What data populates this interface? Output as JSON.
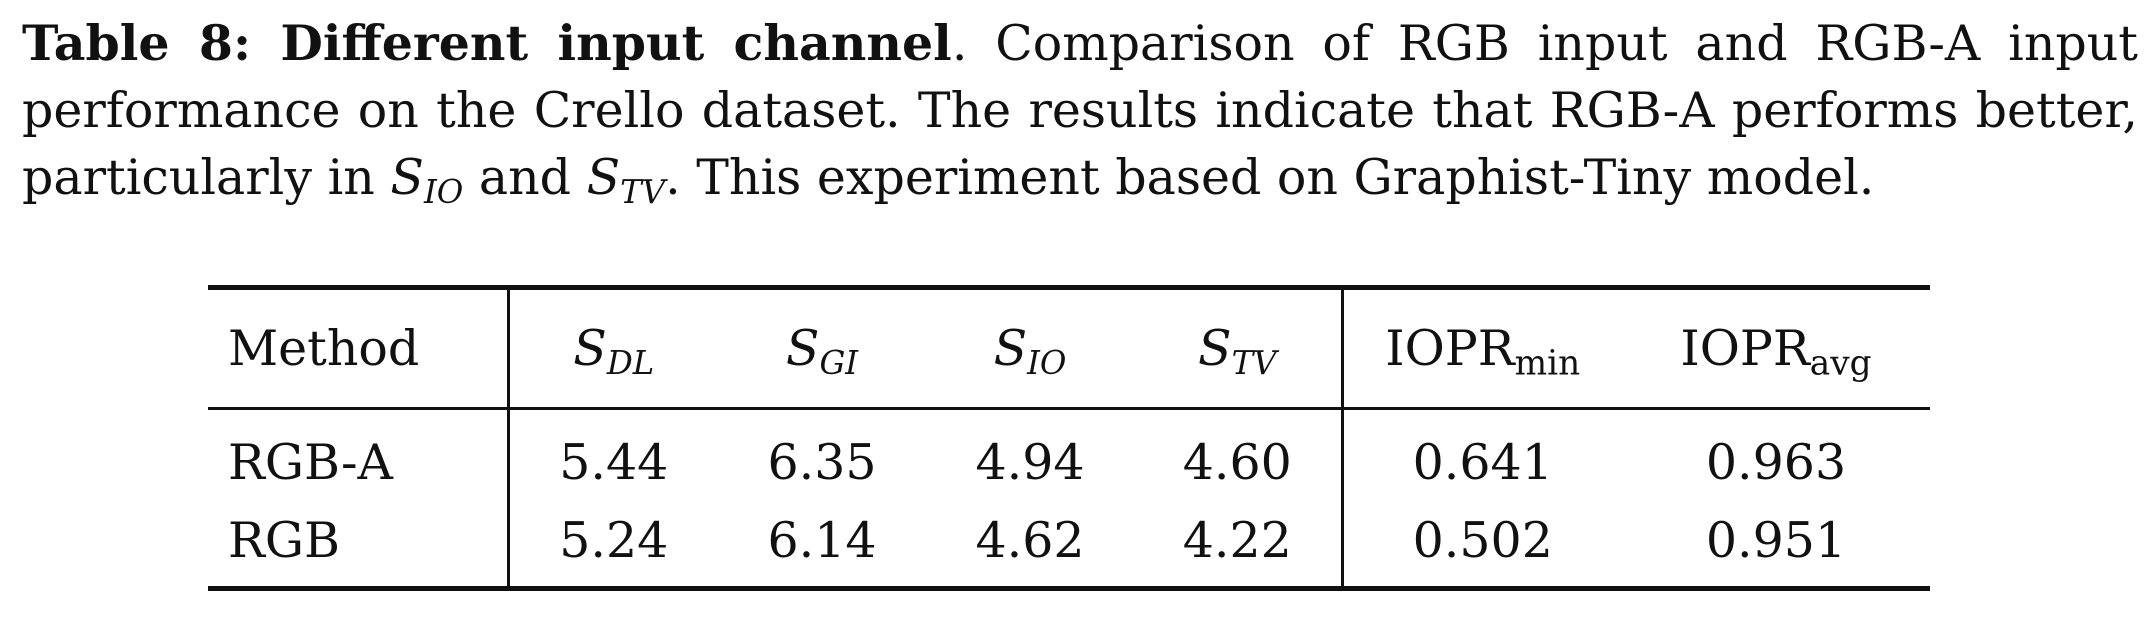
{
  "caption": {
    "label": "Table 8: Different input channel",
    "text_1": ". Comparison of RGB input and RGB-A input performance on the Crello dataset. The results indicate that RGB-A performs better, particularly in ",
    "sym_io_base": "S",
    "sym_io_sub": "IO",
    "text_2": " and ",
    "sym_tv_base": "S",
    "sym_tv_sub": "TV",
    "text_3": ". This experiment based on Graphist-Tiny model."
  },
  "table": {
    "headers": {
      "method": "Method",
      "sdl_base": "S",
      "sdl_sub": "DL",
      "sgi_base": "S",
      "sgi_sub": "GI",
      "sio_base": "S",
      "sio_sub": "IO",
      "stv_base": "S",
      "stv_sub": "TV",
      "ioprmin_base": "IOPR",
      "ioprmin_sub": "min",
      "iopravg_base": "IOPR",
      "iopravg_sub": "avg"
    },
    "rows": [
      {
        "method": "RGB-A",
        "sdl": "5.44",
        "sgi": "6.35",
        "sio": "4.94",
        "stv": "4.60",
        "ioprmin": "0.641",
        "iopravg": "0.963"
      },
      {
        "method": "RGB",
        "sdl": "5.24",
        "sgi": "6.14",
        "sio": "4.62",
        "stv": "4.22",
        "ioprmin": "0.502",
        "iopravg": "0.951"
      }
    ]
  }
}
